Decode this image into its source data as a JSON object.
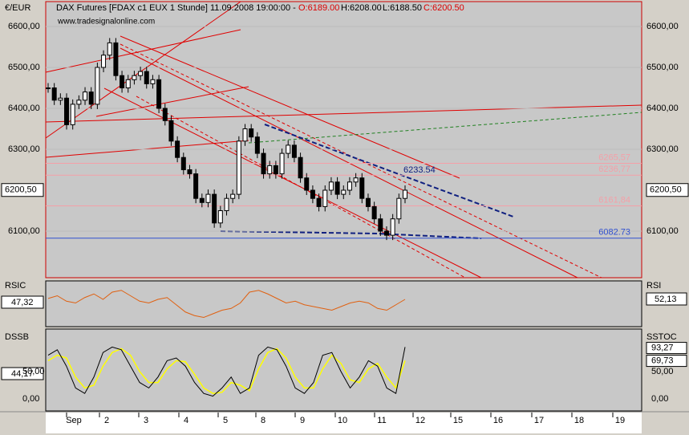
{
  "header": {
    "title": "DAX Futures [FDAX c1 EUX  1 Stunde] 11.09.2008 19:00:00 -",
    "open": "O:6189.00",
    "high": "H:6208.00",
    "low": "L:6188.50",
    "close": "C:6200.50",
    "source": "www.tradesignalonline.com"
  },
  "main": {
    "unit": "€/EUR",
    "yticks": [
      {
        "value": 6600,
        "label": "6600,00"
      },
      {
        "value": 6500,
        "label": "6500,00"
      },
      {
        "value": 6400,
        "label": "6400,00"
      },
      {
        "value": 6300,
        "label": "6300,00"
      },
      {
        "value": 6100,
        "label": "6100,00"
      }
    ],
    "current": {
      "value": 6200.5,
      "label": "6200,50"
    },
    "levels": [
      {
        "value": 6265.57,
        "label": "6265,57",
        "color": "#f4a0a8"
      },
      {
        "value": 6236.77,
        "label": "6236,77",
        "color": "#f4a0a8"
      },
      {
        "value": 6161.84,
        "label": "6161,84",
        "color": "#f4a0a8"
      },
      {
        "value": 6082.73,
        "label": "6082.73",
        "color": "#3050d0"
      }
    ],
    "line_label": "6233.54",
    "prices": [
      6450,
      6420,
      6425,
      6360,
      6410,
      6420,
      6440,
      6410,
      6500,
      6530,
      6560,
      6480,
      6450,
      6470,
      6480,
      6490,
      6460,
      6470,
      6400,
      6370,
      6320,
      6280,
      6250,
      6240,
      6180,
      6170,
      6190,
      6120,
      6150,
      6180,
      6190,
      6320,
      6350,
      6330,
      6290,
      6240,
      6260,
      6240,
      6290,
      6310,
      6280,
      6230,
      6200,
      6180,
      6160,
      6200,
      6220,
      6190,
      6200,
      6220,
      6230,
      6180,
      6160,
      6130,
      6100,
      6090,
      6130,
      6180,
      6200
    ]
  },
  "rsi": {
    "name": "RSIC",
    "left": "47,32",
    "right_name": "RSI",
    "right": "52,13",
    "values": [
      55,
      58,
      52,
      50,
      56,
      60,
      54,
      62,
      64,
      58,
      52,
      50,
      54,
      56,
      48,
      40,
      36,
      34,
      38,
      42,
      44,
      50,
      62,
      64,
      60,
      55,
      50,
      52,
      48,
      46,
      44,
      42,
      46,
      50,
      52,
      50,
      44,
      42,
      48,
      54
    ]
  },
  "dss": {
    "name": "DSSB",
    "left": "44,17",
    "right_name": "SSTOC",
    "right_ticks": [
      {
        "value": 93.27,
        "label": "93,27"
      },
      {
        "value": 69.73,
        "label": "69,73"
      },
      {
        "value": 50,
        "label": "50,00"
      },
      {
        "value": 0,
        "label": "0,00"
      }
    ],
    "left_ticks": [
      {
        "value": 50,
        "label": "50,00"
      },
      {
        "value": 0,
        "label": "0,00"
      }
    ],
    "fast": [
      80,
      90,
      60,
      20,
      10,
      40,
      85,
      95,
      90,
      60,
      30,
      20,
      40,
      70,
      75,
      60,
      30,
      10,
      5,
      20,
      40,
      10,
      20,
      80,
      95,
      90,
      60,
      20,
      10,
      30,
      80,
      85,
      50,
      20,
      40,
      70,
      60,
      20,
      10,
      95
    ],
    "slow": [
      70,
      80,
      75,
      40,
      20,
      25,
      60,
      85,
      92,
      80,
      50,
      30,
      30,
      55,
      70,
      68,
      45,
      20,
      10,
      12,
      30,
      25,
      15,
      55,
      85,
      92,
      75,
      40,
      20,
      20,
      55,
      80,
      65,
      35,
      30,
      55,
      65,
      40,
      20,
      70
    ]
  },
  "xaxis": {
    "labels": [
      "Sep",
      "2",
      "3",
      "4",
      "5",
      "8",
      "9",
      "10",
      "11",
      "12",
      "15",
      "16",
      "17",
      "18",
      "19"
    ]
  }
}
